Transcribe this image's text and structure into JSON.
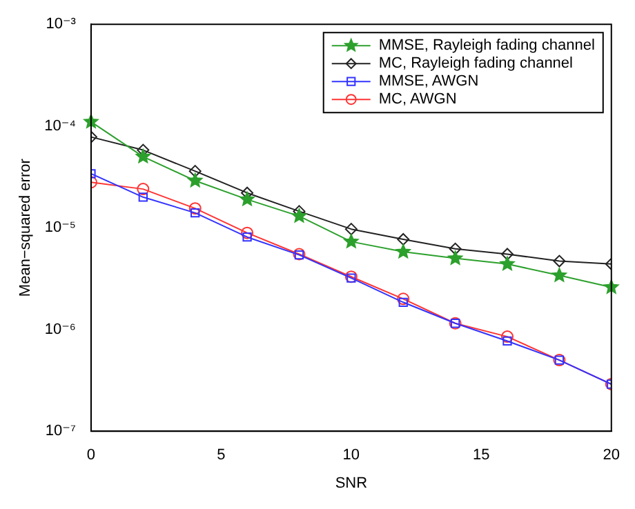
{
  "chart_data": {
    "type": "line",
    "xlabel": "SNR",
    "ylabel": "Mean−squared error",
    "log": "y",
    "grid": false,
    "legend": "top right",
    "x": [
      0,
      2,
      4,
      6,
      8,
      10,
      12,
      14,
      16,
      18,
      20
    ],
    "xlim": [
      0,
      20
    ],
    "xticks": [
      0,
      5,
      10,
      15,
      20
    ],
    "ylim": [
      1e-07,
      0.001
    ],
    "yticks": [
      {
        "value": 1e-07,
        "label": "10⁻⁷"
      },
      {
        "value": 1e-06,
        "label": "10⁻⁶"
      },
      {
        "value": 1e-05,
        "label": "10⁻⁵"
      },
      {
        "value": 0.0001,
        "label": "10⁻⁴"
      },
      {
        "value": 0.001,
        "label": "10⁻³"
      }
    ],
    "series": [
      {
        "name": "MMSE, Rayleigh fading channel",
        "color": "#2ca02c",
        "marker": "star",
        "values": [
          0.00011,
          5e-05,
          2.9e-05,
          1.9e-05,
          1.3e-05,
          7.3e-06,
          5.8e-06,
          5e-06,
          4.4e-06,
          3.4e-06,
          2.6e-06
        ]
      },
      {
        "name": "MC, Rayleigh fading channel",
        "color": "#222222",
        "marker": "diamond",
        "values": [
          7.8e-05,
          5.8e-05,
          3.6e-05,
          2.2e-05,
          1.45e-05,
          9.7e-06,
          7.7e-06,
          6.2e-06,
          5.5e-06,
          4.7e-06,
          4.4e-06
        ]
      },
      {
        "name": "MMSE, AWGN",
        "color": "#3333ff",
        "marker": "square",
        "values": [
          3.4e-05,
          2e-05,
          1.4e-05,
          8.1e-06,
          5.4e-06,
          3.2e-06,
          1.85e-06,
          1.15e-06,
          7.7e-07,
          5e-07,
          2.9e-07
        ]
      },
      {
        "name": "MC, AWGN",
        "color": "#ff3333",
        "marker": "circle",
        "values": [
          2.8e-05,
          2.4e-05,
          1.55e-05,
          8.9e-06,
          5.5e-06,
          3.3e-06,
          2e-06,
          1.15e-06,
          8.5e-07,
          5e-07,
          2.9e-07
        ]
      }
    ]
  }
}
